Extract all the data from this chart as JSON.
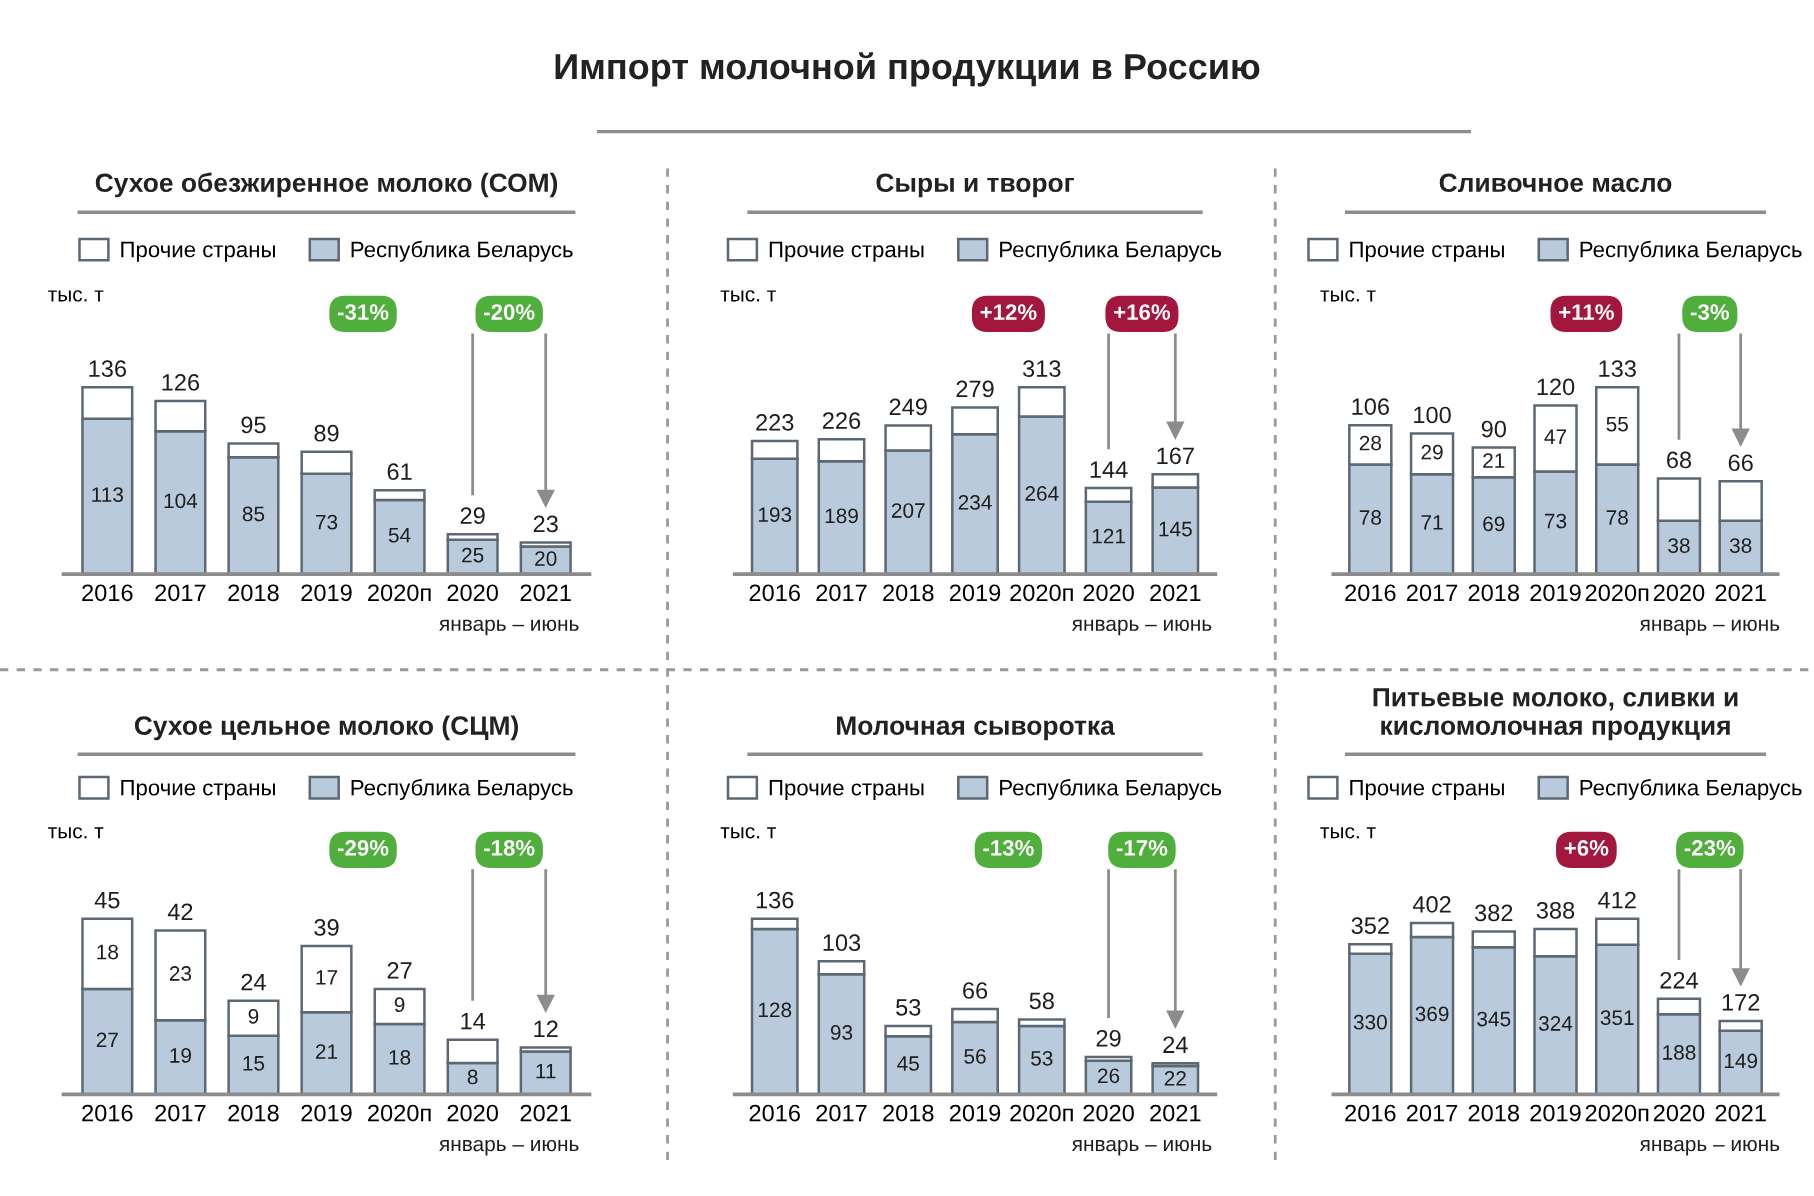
{
  "chart_data": [
    {
      "type": "other",
      "title": "Импорт молочной продукции в Россию"
    },
    {
      "type": "bar",
      "stacked": true,
      "title": "Сухое обезжиренное молоко (СОМ)",
      "ylabel": "тыс. т",
      "legend": "top",
      "tick_labels": "x",
      "categories": [
        "2016",
        "2017",
        "2018",
        "2019",
        "2020п",
        "2020",
        "2021"
      ],
      "series": [
        {
          "name": "Республика Беларусь",
          "color": "#b8cadb",
          "values": [
            113,
            104,
            85,
            73,
            54,
            25,
            20
          ],
          "value_labels": [
            "113",
            "104",
            "85",
            "73",
            "54",
            "25",
            "20"
          ]
        },
        {
          "name": "Прочие страны",
          "color": "#ffffff",
          "values": [
            23,
            22,
            10,
            16,
            7,
            4,
            3
          ]
        }
      ],
      "totals": [
        "136",
        "126",
        "95",
        "89",
        "61",
        "29",
        "23"
      ],
      "annotations": [
        "-31%",
        "-20%",
        "январь – июнь"
      ]
    },
    {
      "type": "bar",
      "stacked": true,
      "title": "Сыры и творог",
      "ylabel": "тыс. т",
      "legend": "top",
      "tick_labels": "x",
      "categories": [
        "2016",
        "2017",
        "2018",
        "2019",
        "2020п",
        "2020",
        "2021"
      ],
      "series": [
        {
          "name": "Республика Беларусь",
          "color": "#b8cadb",
          "values": [
            193,
            189,
            207,
            234,
            264,
            121,
            145
          ],
          "value_labels": [
            "193",
            "189",
            "207",
            "234",
            "264",
            "121",
            "145"
          ]
        },
        {
          "name": "Прочие страны",
          "color": "#ffffff",
          "values": [
            30,
            37,
            42,
            45,
            49,
            23,
            22
          ]
        }
      ],
      "totals": [
        "223",
        "226",
        "249",
        "279",
        "313",
        "144",
        "167"
      ],
      "annotations": [
        "+12%",
        "+16%",
        "январь – июнь"
      ]
    },
    {
      "type": "bar",
      "stacked": true,
      "title": "Сливочное масло",
      "ylabel": "тыс. т",
      "legend": "top",
      "tick_labels": "x",
      "categories": [
        "2016",
        "2017",
        "2018",
        "2019",
        "2020п",
        "2020",
        "2021"
      ],
      "series": [
        {
          "name": "Республика Беларусь",
          "color": "#b8cadb",
          "values": [
            78,
            71,
            69,
            73,
            78,
            38,
            38
          ],
          "value_labels": [
            "78",
            "71",
            "69",
            "73",
            "78",
            "38",
            "38"
          ]
        },
        {
          "name": "Прочие страны",
          "color": "#ffffff",
          "values": [
            28,
            29,
            21,
            47,
            55,
            30,
            28
          ],
          "value_labels": [
            "28",
            "29",
            "21",
            "47",
            "55",
            null,
            null
          ]
        }
      ],
      "totals": [
        "106",
        "100",
        "90",
        "120",
        "133",
        "68",
        "66"
      ],
      "annotations": [
        "+11%",
        "-3%",
        "январь – июнь"
      ]
    },
    {
      "type": "bar",
      "stacked": true,
      "title": "Сухое цельное молоко (СЦМ)",
      "ylabel": "тыс. т",
      "legend": "top",
      "tick_labels": "x",
      "categories": [
        "2016",
        "2017",
        "2018",
        "2019",
        "2020п",
        "2020",
        "2021"
      ],
      "series": [
        {
          "name": "Республика Беларусь",
          "color": "#b8cadb",
          "values": [
            27,
            19,
            15,
            21,
            18,
            8,
            11
          ],
          "value_labels": [
            "27",
            "19",
            "15",
            "21",
            "18",
            "8",
            "11"
          ]
        },
        {
          "name": "Прочие страны",
          "color": "#ffffff",
          "values": [
            18,
            23,
            9,
            17,
            9,
            6,
            1
          ],
          "value_labels": [
            "18",
            "23",
            "9",
            "17",
            "9",
            null,
            null
          ]
        }
      ],
      "totals": [
        "45",
        "42",
        "24",
        "39",
        "27",
        "14",
        "12"
      ],
      "annotations": [
        "-29%",
        "-18%",
        "январь – июнь"
      ]
    },
    {
      "type": "bar",
      "stacked": true,
      "title": "Молочная сыворотка",
      "ylabel": "тыс. т",
      "legend": "top",
      "tick_labels": "x",
      "categories": [
        "2016",
        "2017",
        "2018",
        "2019",
        "2020п",
        "2020",
        "2021"
      ],
      "series": [
        {
          "name": "Республика Беларусь",
          "color": "#b8cadb",
          "values": [
            128,
            93,
            45,
            56,
            53,
            26,
            22
          ],
          "value_labels": [
            "128",
            "93",
            "45",
            "56",
            "53",
            "26",
            "22"
          ]
        },
        {
          "name": "Прочие страны",
          "color": "#ffffff",
          "values": [
            8,
            10,
            8,
            10,
            5,
            3,
            2
          ]
        }
      ],
      "totals": [
        "136",
        "103",
        "53",
        "66",
        "58",
        "29",
        "24"
      ],
      "annotations": [
        "-13%",
        "-17%",
        "январь – июнь"
      ]
    },
    {
      "type": "bar",
      "stacked": true,
      "title": "Питьевые молоко, сливки и\nкисломолочная продукция",
      "ylabel": "тыс. т",
      "legend": "top",
      "tick_labels": "x",
      "categories": [
        "2016",
        "2017",
        "2018",
        "2019",
        "2020п",
        "2020",
        "2021"
      ],
      "series": [
        {
          "name": "Республика Беларусь",
          "color": "#b8cadb",
          "values": [
            330,
            369,
            345,
            324,
            351,
            188,
            149
          ],
          "value_labels": [
            "330",
            "369",
            "345",
            "324",
            "351",
            "188",
            "149"
          ]
        },
        {
          "name": "Прочие страны",
          "color": "#ffffff",
          "values": [
            22,
            33,
            37,
            64,
            61,
            36,
            23
          ]
        }
      ],
      "totals": [
        "352",
        "402",
        "382",
        "388",
        "412",
        "224",
        "172"
      ],
      "annotations": [
        "+6%",
        "-23%",
        "январь – июнь"
      ]
    }
  ]
}
